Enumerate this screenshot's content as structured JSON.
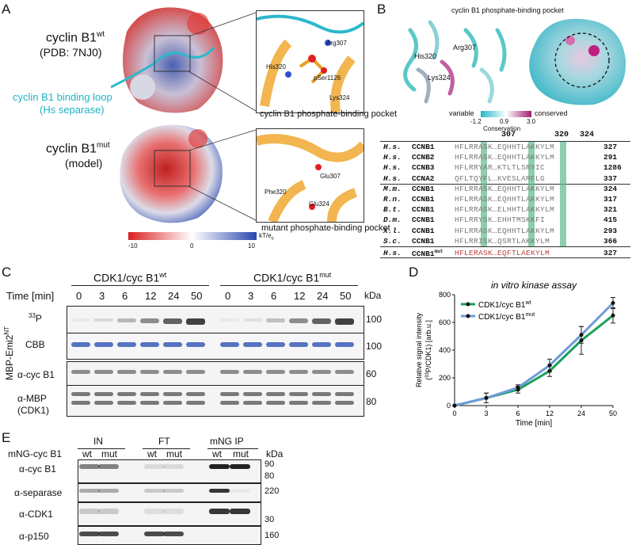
{
  "panels": {
    "A": "A",
    "B": "B",
    "C": "C",
    "D": "D",
    "E": "E"
  },
  "panelA": {
    "wt_name": "cyclin B1",
    "wt_sup": "wt",
    "wt_pdb": "(PDB: 7NJ0)",
    "loop_label_1": "cyclin B1 binding loop",
    "loop_label_2": "(Hs separase)",
    "mut_name": "cyclin B1",
    "mut_sup": "mut",
    "mut_model": "(model)",
    "inset_wt_caption": "cyclin B1 phosphate-binding pocket",
    "inset_mut_caption": "mutant phosphate-binding pocket",
    "inset_wt_residues": [
      "Arg307",
      "His320",
      "pSer1126",
      "Lys324"
    ],
    "inset_mut_residues": [
      "Glu307",
      "Phe320",
      "Glu324"
    ],
    "scale": {
      "min": "-10",
      "mid": "0",
      "max": "10",
      "unit": "kT/e",
      "unit_sub": "c"
    }
  },
  "panelB": {
    "title": "cyclin B1 phosphate-binding pocket",
    "residues": [
      "Arg307",
      "His320",
      "Lys324"
    ],
    "scale": {
      "left": "variable",
      "right": "conserved",
      "min": "-1.2",
      "mid": "0.9",
      "max": "3.0",
      "label": "Conservation"
    },
    "positions": [
      "307",
      "320",
      "324"
    ],
    "alignment": [
      {
        "sp": "H.s.",
        "prot": "CCNB1",
        "seq": "HFLRRASK…EQHHTLAKKYLM",
        "end": "327"
      },
      {
        "sp": "H.s.",
        "prot": "CCNB2",
        "seq": "HFLRRASK…EQHHTLAKKYLM",
        "end": "291"
      },
      {
        "sp": "H.s.",
        "prot": "CCNB3",
        "seq": "HFLRRYAR…KTLTLSRYIC",
        "end": "1286"
      },
      {
        "sp": "H.s.",
        "prot": "CCNA2",
        "seq": "QFLTQYFL…KVESLAMFLG",
        "end": "337"
      },
      {
        "sp": "M.m.",
        "prot": "CCNB1",
        "seq": "HFLRRASK…EQHHTLAKKYLM",
        "end": "324"
      },
      {
        "sp": "R.n.",
        "prot": "CCNB1",
        "seq": "HFLRRASK…EQHHTLAKKYLM",
        "end": "317"
      },
      {
        "sp": "B.t.",
        "prot": "CCNB1",
        "seq": "HFLRRASK…ELHHTLAKKYLM",
        "end": "321"
      },
      {
        "sp": "D.m.",
        "prot": "CCNB1",
        "seq": "HFLRRYSK…EHHTMSKKFI",
        "end": "415"
      },
      {
        "sp": "X.l.",
        "prot": "CCNB1",
        "seq": "HFLRRASK…EQHHTLAKKYLM",
        "end": "293"
      },
      {
        "sp": "S.c.",
        "prot": "CCNB1",
        "seq": "HFLRRISK…QSRTLAKKYLM",
        "end": "366"
      },
      {
        "sp": "H.s.",
        "prot": "CCNB1",
        "prot_sup": "mut",
        "seq": "HFLERASK…EQFTLAEKYLM",
        "end": "327"
      }
    ]
  },
  "panelC": {
    "time_label": "Time [min]",
    "group_wt": "CDK1/cyc B1",
    "group_wt_sup": "wt",
    "group_mut": "CDK1/cyc B1",
    "group_mut_sup": "mut",
    "times": [
      "0",
      "3",
      "6",
      "12",
      "24",
      "50"
    ],
    "kda": "kDa",
    "side_label": "MBP-Emi2",
    "side_label_sup": "NT",
    "rows": [
      {
        "label": "P",
        "label_pre": "33",
        "mw": "100"
      },
      {
        "label": "CBB",
        "mw": "100"
      },
      {
        "label": "α-cyc B1",
        "mw": "60"
      },
      {
        "label": "α-MBP",
        "label2": "(CDK1)",
        "mw": "80"
      }
    ]
  },
  "chart_data": {
    "type": "line",
    "title": "in vitro kinase assay",
    "xlabel": "Time [min]",
    "ylabel": "Relative signal intensity",
    "ylabel2_pre": "(",
    "ylabel2_sup": "33",
    "ylabel2_post": "P/CDK1) [arb.u.]",
    "x": [
      0,
      3,
      6,
      12,
      24,
      50
    ],
    "xticks": [
      "0",
      "3",
      "6",
      "12",
      "24",
      "50"
    ],
    "ylim": [
      0,
      800
    ],
    "yticks": [
      "0",
      "200",
      "400",
      "600",
      "800"
    ],
    "series": [
      {
        "name": "CDK1/cyc B1",
        "name_sup": "wt",
        "color": "#1aa05a",
        "values": [
          0,
          55,
          115,
          250,
          470,
          650
        ],
        "err": [
          0,
          35,
          25,
          40,
          100,
          55
        ]
      },
      {
        "name": "CDK1/cyc B1",
        "name_sup": "mut",
        "color": "#6f9bd8",
        "values": [
          0,
          55,
          130,
          290,
          510,
          740
        ],
        "err": [
          0,
          35,
          20,
          45,
          60,
          40
        ]
      }
    ]
  },
  "panelE": {
    "row_title": "mNG-cyc B1",
    "groups": [
      "IN",
      "FT",
      "mNG IP"
    ],
    "lanes": [
      "wt",
      "mut",
      "wt",
      "mut",
      "wt",
      "mut"
    ],
    "kda": "kDa",
    "rows": [
      {
        "label": "α-cyc B1",
        "mw": [
          "90",
          "80"
        ]
      },
      {
        "label": "α-separase",
        "mw": [
          "220"
        ]
      },
      {
        "label": "α-CDK1",
        "mw": [
          "30"
        ]
      },
      {
        "label": "α-p150",
        "mw": [
          "160"
        ]
      }
    ]
  }
}
